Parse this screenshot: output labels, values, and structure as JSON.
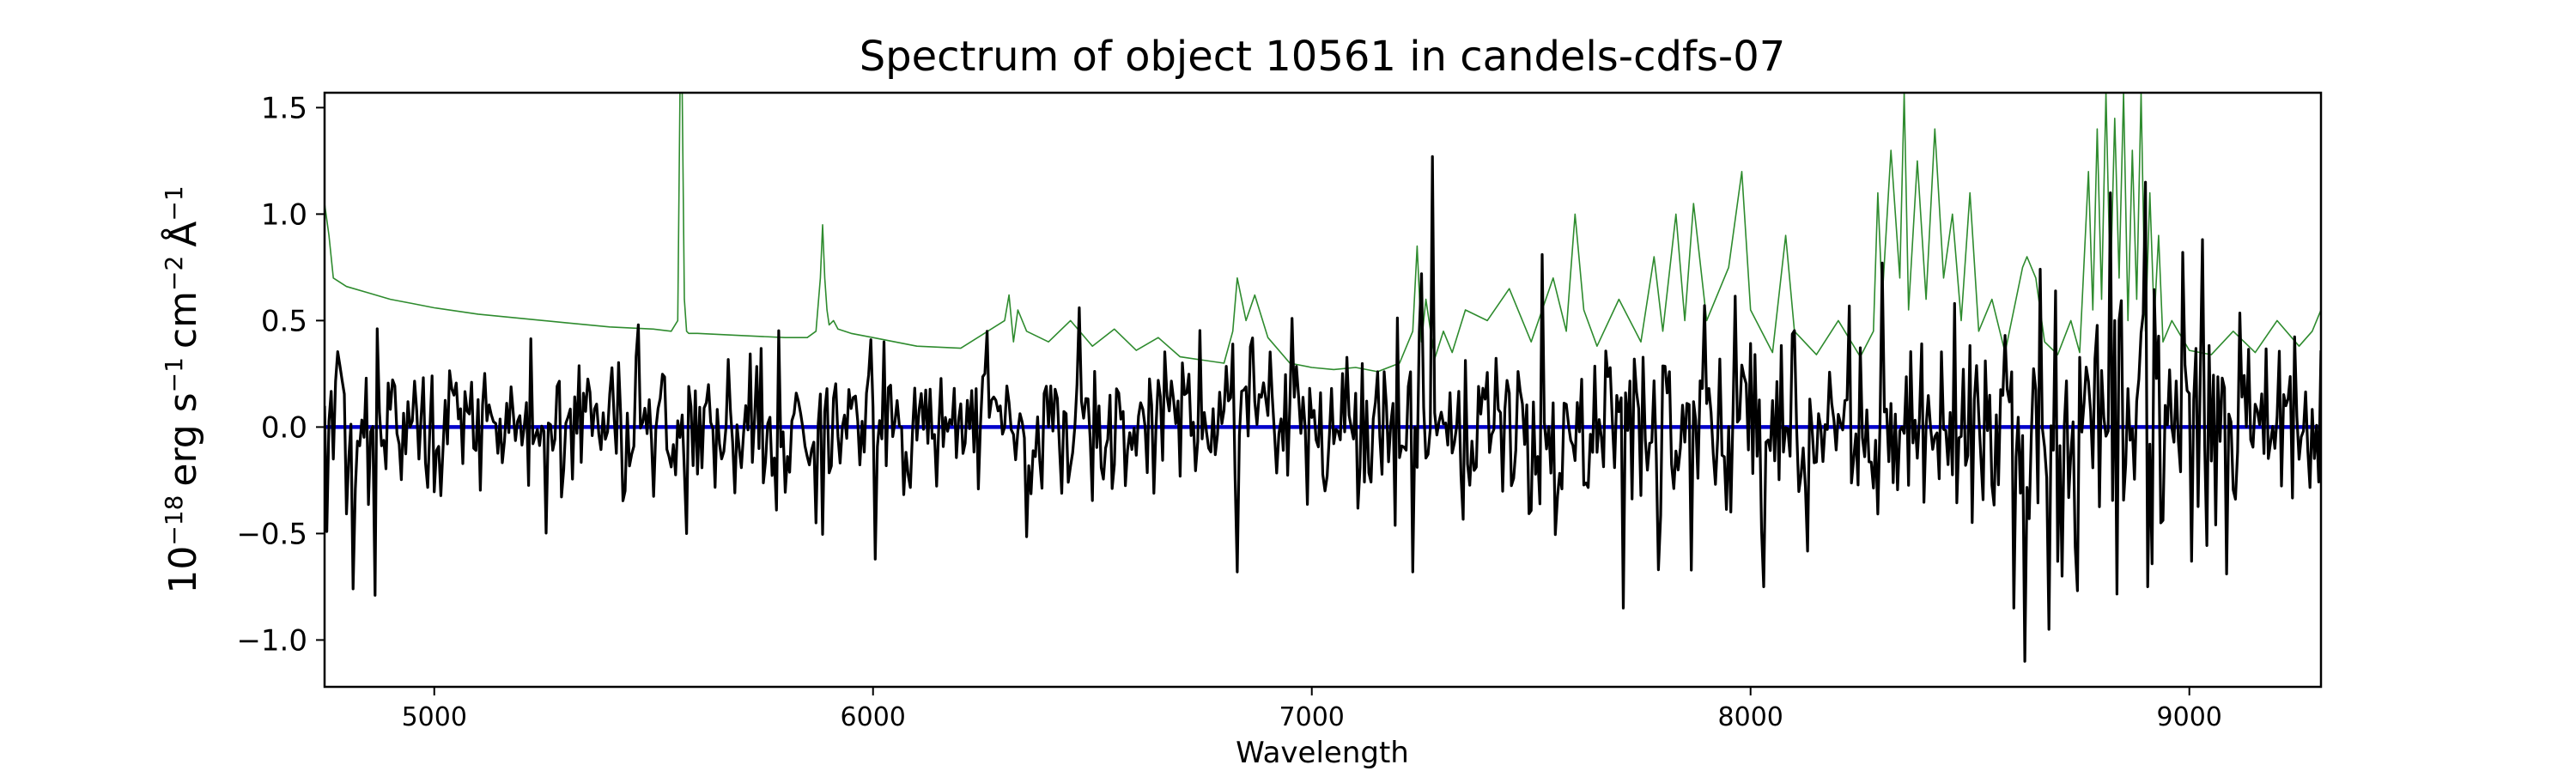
{
  "chart_data": {
    "type": "line",
    "title": "Spectrum of object 10561 in candels-cdfs-07",
    "xlabel": "Wavelength",
    "ylabel": {
      "base": "10",
      "base_exp": "−18",
      "unit1": "erg s",
      "unit1_exp": "−1",
      "unit2": "cm",
      "unit2_exp": "−2",
      "unit3": "Å",
      "unit3_exp": "−1"
    },
    "xlim": [
      4750,
      9300
    ],
    "ylim": [
      -1.22,
      1.57
    ],
    "x_ticks": [
      5000,
      6000,
      7000,
      8000,
      9000
    ],
    "x_tick_labels": [
      "5000",
      "6000",
      "7000",
      "8000",
      "9000"
    ],
    "y_ticks": [
      -1.0,
      -0.5,
      0.0,
      0.5,
      1.0,
      1.5
    ],
    "y_tick_labels": [
      "−1.0",
      "−0.5",
      "0.0",
      "0.5",
      "1.0",
      "1.5"
    ],
    "grid": false,
    "legend": "none",
    "series": [
      {
        "role": "error",
        "color": "#2e8b2e",
        "x": [
          4750,
          4760,
          4770,
          4800,
          4850,
          4900,
          4950,
          5000,
          5100,
          5200,
          5300,
          5400,
          5500,
          5540,
          5555,
          5560,
          5565,
          5570,
          5575,
          5580,
          5600,
          5700,
          5800,
          5850,
          5870,
          5880,
          5885,
          5890,
          5895,
          5900,
          5910,
          5920,
          5950,
          6000,
          6100,
          6200,
          6300,
          6310,
          6320,
          6330,
          6350,
          6400,
          6450,
          6500,
          6550,
          6600,
          6650,
          6700,
          6800,
          6820,
          6830,
          6850,
          6870,
          6900,
          6950,
          7000,
          7050,
          7100,
          7150,
          7200,
          7230,
          7240,
          7250,
          7260,
          7280,
          7300,
          7320,
          7350,
          7400,
          7450,
          7500,
          7550,
          7580,
          7600,
          7620,
          7650,
          7700,
          7750,
          7780,
          7800,
          7830,
          7850,
          7870,
          7900,
          7950,
          7980,
          8000,
          8050,
          8080,
          8100,
          8150,
          8200,
          8250,
          8280,
          8290,
          8300,
          8320,
          8340,
          8350,
          8360,
          8380,
          8400,
          8420,
          8440,
          8460,
          8480,
          8500,
          8520,
          8550,
          8580,
          8600,
          8620,
          8630,
          8650,
          8670,
          8700,
          8730,
          8750,
          8770,
          8780,
          8790,
          8800,
          8810,
          8820,
          8830,
          8840,
          8850,
          8860,
          8870,
          8880,
          8890,
          8900,
          8910,
          8920,
          8930,
          8940,
          8960,
          9000,
          9050,
          9100,
          9150,
          9200,
          9250,
          9280,
          9300
        ],
        "y": [
          1.05,
          0.9,
          0.7,
          0.66,
          0.63,
          0.6,
          0.58,
          0.56,
          0.53,
          0.51,
          0.49,
          0.47,
          0.46,
          0.45,
          0.5,
          1.57,
          1.57,
          0.6,
          0.45,
          0.44,
          0.44,
          0.43,
          0.42,
          0.42,
          0.45,
          0.7,
          0.95,
          0.7,
          0.55,
          0.48,
          0.5,
          0.46,
          0.44,
          0.42,
          0.38,
          0.37,
          0.5,
          0.62,
          0.4,
          0.55,
          0.45,
          0.4,
          0.5,
          0.38,
          0.46,
          0.36,
          0.42,
          0.33,
          0.3,
          0.45,
          0.7,
          0.5,
          0.62,
          0.42,
          0.3,
          0.28,
          0.27,
          0.28,
          0.26,
          0.3,
          0.45,
          0.85,
          0.4,
          0.6,
          0.32,
          0.45,
          0.35,
          0.55,
          0.5,
          0.65,
          0.4,
          0.7,
          0.45,
          1.0,
          0.55,
          0.38,
          0.6,
          0.4,
          0.8,
          0.45,
          1.0,
          0.5,
          1.05,
          0.5,
          0.75,
          1.2,
          0.55,
          0.35,
          0.9,
          0.45,
          0.34,
          0.5,
          0.33,
          0.45,
          1.1,
          0.6,
          1.3,
          0.7,
          1.57,
          0.55,
          1.25,
          0.6,
          1.4,
          0.7,
          1.0,
          0.5,
          1.1,
          0.45,
          0.6,
          0.35,
          0.55,
          0.75,
          0.8,
          0.7,
          0.4,
          0.34,
          0.5,
          0.35,
          1.2,
          0.55,
          1.4,
          0.6,
          1.57,
          0.65,
          1.45,
          0.7,
          1.57,
          0.5,
          1.3,
          0.6,
          1.57,
          0.45,
          1.1,
          0.5,
          0.9,
          0.4,
          0.5,
          0.36,
          0.34,
          0.45,
          0.35,
          0.5,
          0.38,
          0.45,
          0.55
        ]
      },
      {
        "role": "zero",
        "color": "#0000cc",
        "x": [
          4750,
          9300
        ],
        "y": [
          0.0,
          0.0
        ]
      },
      {
        "role": "flux",
        "color": "#000000",
        "seed": 10561,
        "x_start": 4750,
        "x_end": 9300,
        "x_step": 5,
        "noise_anchors": {
          "x": [
            4750,
            5000,
            5500,
            6000,
            6500,
            7000,
            7200,
            7500,
            7800,
            8000,
            8200,
            8500,
            8700,
            8900,
            9100,
            9300
          ],
          "sigma": [
            0.22,
            0.18,
            0.16,
            0.16,
            0.17,
            0.18,
            0.2,
            0.22,
            0.2,
            0.22,
            0.24,
            0.26,
            0.3,
            0.3,
            0.24,
            0.22
          ]
        },
        "features": {
          "x": [
            4815,
            4865,
            4995,
            5465,
            5575,
            5870,
            5995,
            6005,
            6260,
            6470,
            6830,
            6955,
            7230,
            7250,
            7275,
            7525,
            7712,
            7790,
            7895,
            8030,
            8300,
            8465,
            8600,
            8625,
            8680,
            8710,
            8820,
            8830,
            8900,
            8905,
            8985,
            9005,
            9030,
            9220,
            9300
          ],
          "y": [
            -0.76,
            -0.79,
            0.24,
            0.48,
            -0.5,
            -0.45,
            0.41,
            -0.62,
            0.45,
            0.56,
            -0.68,
            0.51,
            -0.68,
            0.72,
            1.27,
            0.81,
            -0.85,
            -0.67,
            0.57,
            -0.75,
            0.77,
            0.58,
            -0.85,
            -1.1,
            -0.95,
            -0.7,
            1.1,
            0.5,
            1.15,
            -0.75,
            0.82,
            -0.63,
            0.88,
            0.1,
            0.36
          ]
        }
      }
    ]
  }
}
